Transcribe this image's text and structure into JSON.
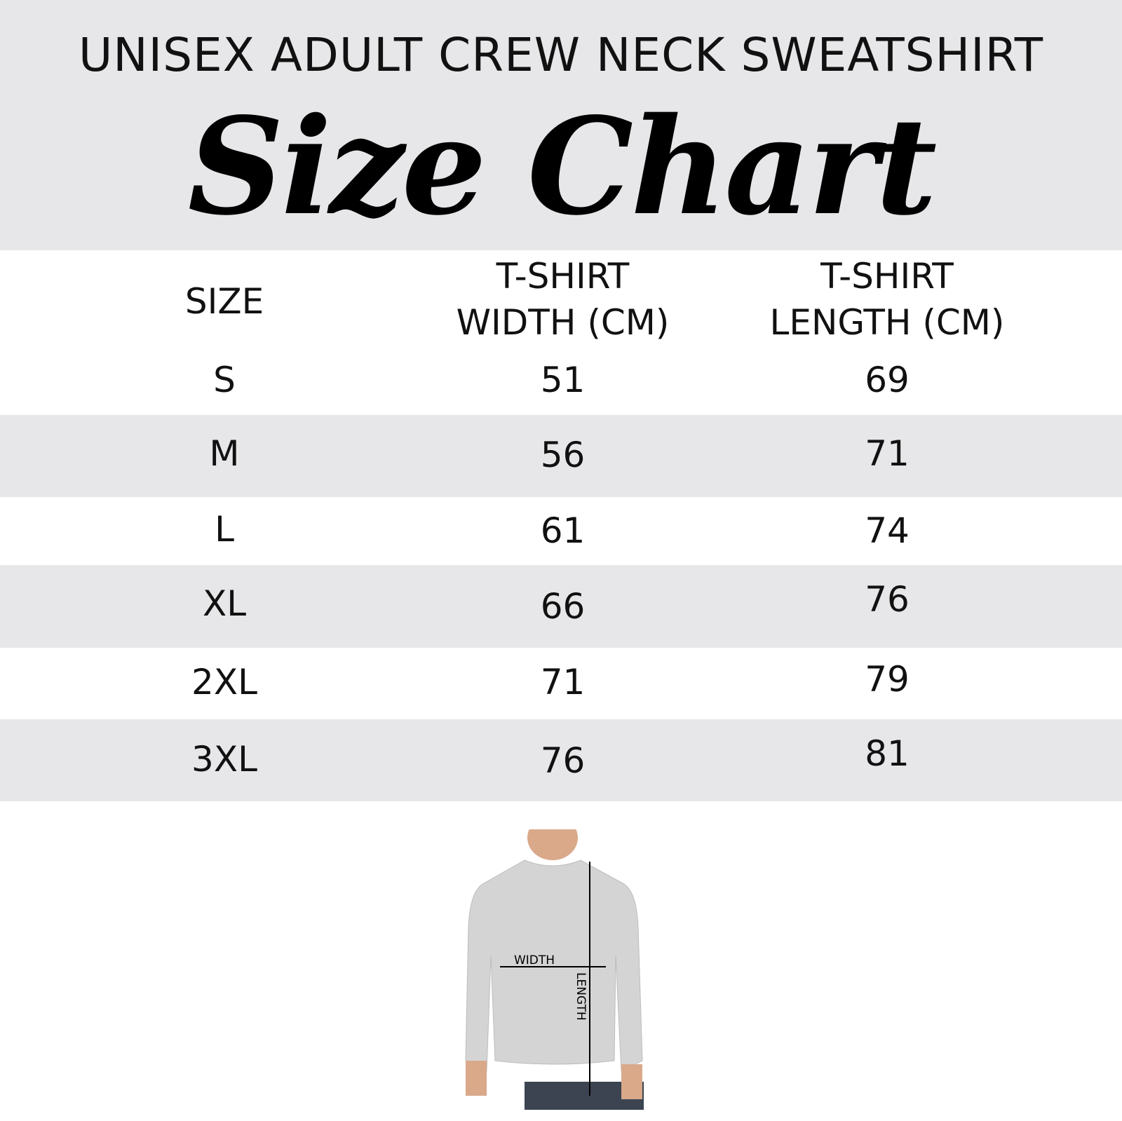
{
  "header": {
    "subtitle": "UNISEX ADULT CREW NECK SWEATSHIRT",
    "title": "Size Chart"
  },
  "table": {
    "columns": [
      "SIZE",
      "T-SHIRT WIDTH (CM)",
      "T-SHIRT LENGTH (CM)"
    ],
    "column_lines": [
      [
        "SIZE"
      ],
      [
        "T-SHIRT",
        "WIDTH (CM)"
      ],
      [
        "T-SHIRT",
        "LENGTH (CM)"
      ]
    ],
    "rows": [
      {
        "size": "S",
        "width": "51",
        "length": "69"
      },
      {
        "size": "M",
        "width": "56",
        "length": "71"
      },
      {
        "size": "L",
        "width": "61",
        "length": "74"
      },
      {
        "size": "XL",
        "width": "66",
        "length": "76"
      },
      {
        "size": "2XL",
        "width": "71",
        "length": "79"
      },
      {
        "size": "3XL",
        "width": "76",
        "length": "81"
      }
    ]
  },
  "diagram": {
    "width_label": "WIDTH",
    "length_label": "LENGTH"
  },
  "colors": {
    "band": "#e7e7e9",
    "text": "#111111",
    "garment": "#d4d4d4"
  }
}
